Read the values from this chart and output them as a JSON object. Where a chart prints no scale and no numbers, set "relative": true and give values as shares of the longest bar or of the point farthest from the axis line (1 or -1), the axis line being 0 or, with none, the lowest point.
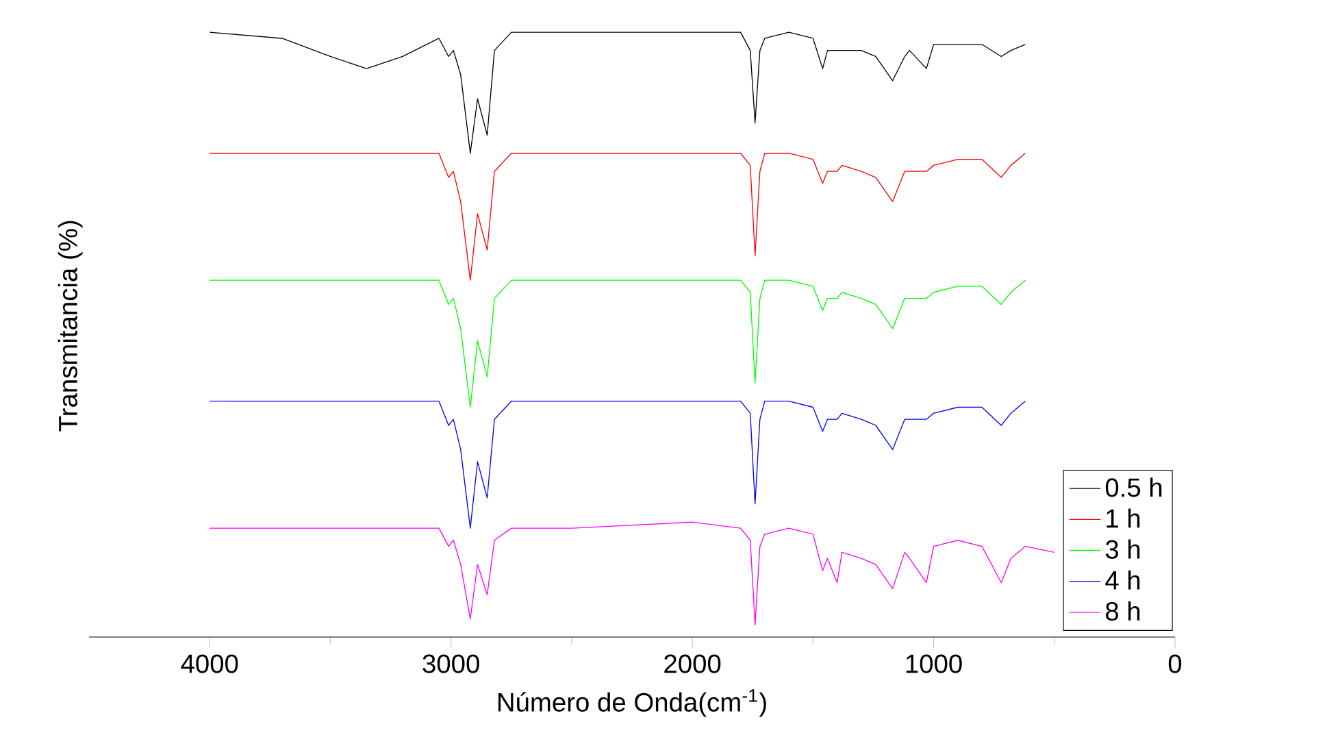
{
  "chart_data": {
    "type": "line",
    "relative": true,
    "xlabel": "Número de Onda(cm$^{-1}$)",
    "ylabel": "Transmitancia (%)",
    "xlim": [
      4500,
      0
    ],
    "xticks": [
      4000,
      3000,
      2000,
      1000,
      0
    ],
    "legend": "bottom right",
    "grid": false,
    "marker": "none",
    "line_style": "solid",
    "series": [
      {
        "name": "0.5 h",
        "color": "#000000",
        "x": [
          4000,
          3700,
          3500,
          3350,
          3200,
          3050,
          3010,
          2990,
          2960,
          2920,
          2890,
          2850,
          2820,
          2750,
          2500,
          2000,
          1800,
          1760,
          1740,
          1720,
          1700,
          1600,
          1500,
          1460,
          1440,
          1400,
          1380,
          1300,
          1240,
          1170,
          1120,
          1100,
          1030,
          1000,
          900,
          800,
          720,
          680,
          620
        ],
        "values": [
          1.0,
          0.99,
          0.96,
          0.94,
          0.96,
          0.99,
          0.96,
          0.97,
          0.93,
          0.8,
          0.89,
          0.83,
          0.97,
          1.0,
          1.0,
          1.0,
          1.0,
          0.97,
          0.85,
          0.97,
          0.99,
          1.0,
          0.99,
          0.94,
          0.97,
          0.97,
          0.97,
          0.97,
          0.96,
          0.92,
          0.96,
          0.97,
          0.94,
          0.98,
          0.98,
          0.98,
          0.96,
          0.97,
          0.98
        ]
      },
      {
        "name": "1 h",
        "color": "#ff0000",
        "x": [
          4000,
          3700,
          3500,
          3350,
          3200,
          3050,
          3010,
          2990,
          2960,
          2920,
          2890,
          2850,
          2820,
          2750,
          2500,
          2000,
          1800,
          1760,
          1740,
          1720,
          1700,
          1600,
          1500,
          1460,
          1440,
          1400,
          1380,
          1300,
          1240,
          1170,
          1120,
          1100,
          1030,
          1000,
          900,
          800,
          720,
          680,
          620
        ],
        "values": [
          0.8,
          0.8,
          0.8,
          0.8,
          0.8,
          0.8,
          0.76,
          0.77,
          0.72,
          0.59,
          0.7,
          0.64,
          0.77,
          0.8,
          0.8,
          0.8,
          0.8,
          0.78,
          0.63,
          0.77,
          0.8,
          0.8,
          0.79,
          0.75,
          0.77,
          0.77,
          0.78,
          0.77,
          0.76,
          0.72,
          0.77,
          0.77,
          0.77,
          0.78,
          0.79,
          0.79,
          0.76,
          0.78,
          0.8
        ]
      },
      {
        "name": "3 h",
        "color": "#00ff00",
        "x": [
          4000,
          3700,
          3500,
          3350,
          3200,
          3050,
          3010,
          2990,
          2960,
          2920,
          2890,
          2850,
          2820,
          2750,
          2500,
          2000,
          1800,
          1760,
          1740,
          1720,
          1700,
          1600,
          1500,
          1460,
          1440,
          1400,
          1380,
          1300,
          1240,
          1170,
          1120,
          1100,
          1030,
          1000,
          900,
          800,
          720,
          680,
          620
        ],
        "values": [
          0.59,
          0.59,
          0.59,
          0.59,
          0.59,
          0.59,
          0.55,
          0.56,
          0.51,
          0.38,
          0.49,
          0.43,
          0.56,
          0.59,
          0.59,
          0.59,
          0.59,
          0.57,
          0.42,
          0.56,
          0.59,
          0.59,
          0.58,
          0.54,
          0.56,
          0.56,
          0.57,
          0.56,
          0.55,
          0.51,
          0.56,
          0.56,
          0.56,
          0.57,
          0.58,
          0.58,
          0.55,
          0.57,
          0.59
        ]
      },
      {
        "name": "4 h",
        "color": "#0000ff",
        "x": [
          4000,
          3700,
          3500,
          3350,
          3200,
          3050,
          3010,
          2990,
          2960,
          2920,
          2890,
          2850,
          2820,
          2750,
          2500,
          2000,
          1800,
          1760,
          1740,
          1720,
          1700,
          1600,
          1500,
          1460,
          1440,
          1400,
          1380,
          1300,
          1240,
          1170,
          1120,
          1100,
          1030,
          1000,
          900,
          800,
          720,
          680,
          620
        ],
        "values": [
          0.39,
          0.39,
          0.39,
          0.39,
          0.39,
          0.39,
          0.35,
          0.36,
          0.31,
          0.18,
          0.29,
          0.23,
          0.36,
          0.39,
          0.39,
          0.39,
          0.39,
          0.37,
          0.22,
          0.36,
          0.39,
          0.39,
          0.38,
          0.34,
          0.36,
          0.36,
          0.37,
          0.36,
          0.35,
          0.31,
          0.36,
          0.36,
          0.36,
          0.37,
          0.38,
          0.38,
          0.35,
          0.37,
          0.39
        ]
      },
      {
        "name": "8 h",
        "color": "#ff00ff",
        "x": [
          4000,
          3700,
          3500,
          3350,
          3200,
          3050,
          3010,
          2990,
          2960,
          2920,
          2890,
          2850,
          2820,
          2750,
          2500,
          2000,
          1800,
          1760,
          1740,
          1720,
          1700,
          1600,
          1500,
          1460,
          1440,
          1400,
          1380,
          1300,
          1240,
          1170,
          1120,
          1100,
          1030,
          1000,
          900,
          800,
          720,
          680,
          620,
          500
        ],
        "values": [
          0.18,
          0.18,
          0.18,
          0.18,
          0.18,
          0.18,
          0.15,
          0.16,
          0.12,
          0.03,
          0.12,
          0.07,
          0.16,
          0.18,
          0.18,
          0.19,
          0.18,
          0.16,
          0.02,
          0.15,
          0.17,
          0.18,
          0.17,
          0.11,
          0.13,
          0.09,
          0.14,
          0.13,
          0.12,
          0.08,
          0.14,
          0.13,
          0.09,
          0.15,
          0.16,
          0.15,
          0.09,
          0.13,
          0.15,
          0.14
        ]
      }
    ]
  }
}
